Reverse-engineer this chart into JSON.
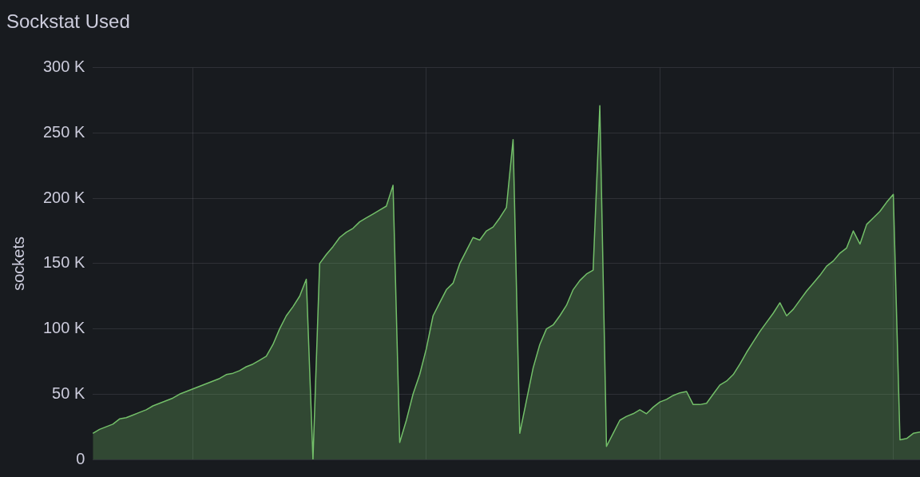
{
  "chart_data": {
    "type": "area",
    "title": "Sockstat Used",
    "ylabel": "sockets",
    "categories": [
      null,
      null,
      null,
      null,
      null,
      null,
      null,
      null,
      null,
      null,
      null,
      null,
      null,
      null,
      null,
      null,
      null,
      null,
      null,
      null,
      null,
      null,
      null,
      null,
      null,
      null,
      null,
      null,
      null,
      null,
      null,
      null,
      null,
      null,
      null,
      null,
      null,
      null,
      null,
      null,
      null,
      null,
      null,
      null,
      null,
      null,
      null,
      null,
      null,
      null,
      null,
      null,
      null,
      null,
      null,
      null,
      null,
      null,
      null,
      null,
      null,
      null,
      null,
      null,
      null,
      null,
      null,
      null,
      null,
      null,
      null,
      null,
      null,
      null,
      null,
      null,
      null,
      null,
      null,
      null,
      null,
      null,
      null,
      null,
      null,
      null,
      null,
      null,
      null,
      null,
      null,
      null,
      null,
      null,
      null,
      null,
      null,
      null,
      null,
      null,
      null,
      null,
      null,
      null,
      null,
      null,
      null,
      null,
      null,
      null,
      null,
      null,
      null,
      null,
      null,
      null,
      null,
      null,
      null,
      null,
      null,
      null,
      null,
      null,
      null
    ],
    "series": [
      {
        "color": "#73bf69",
        "values": [
          20000,
          23000,
          25000,
          27000,
          31000,
          32000,
          34000,
          36000,
          38000,
          41000,
          43000,
          45000,
          47000,
          50000,
          52000,
          54000,
          56000,
          58000,
          60000,
          62000,
          65000,
          66000,
          68000,
          71000,
          73000,
          76000,
          79000,
          88000,
          100000,
          110000,
          117000,
          125000,
          138000,
          0,
          150000,
          157000,
          163000,
          170000,
          174000,
          177000,
          182000,
          185000,
          188000,
          191000,
          194000,
          210000,
          13000,
          30000,
          50000,
          65000,
          85000,
          110000,
          120000,
          130000,
          135000,
          150000,
          160000,
          170000,
          168000,
          175000,
          178000,
          185000,
          193000,
          245000,
          20000,
          45000,
          70000,
          88000,
          100000,
          103000,
          110000,
          118000,
          130000,
          137000,
          142000,
          145000,
          271000,
          10000,
          20000,
          30000,
          33000,
          35000,
          38000,
          35000,
          40000,
          44000,
          46000,
          49000,
          51000,
          52000,
          42000,
          42000,
          43000,
          50000,
          57000,
          60000,
          65000,
          73000,
          82000,
          90000,
          98000,
          105000,
          112000,
          120000,
          110000,
          115000,
          122000,
          129000,
          135000,
          141000,
          148000,
          152000,
          158000,
          162000,
          175000,
          165000,
          180000,
          185000,
          190000,
          197000,
          203000,
          15000,
          16000,
          20000,
          21000
        ]
      }
    ],
    "ylim": [
      0,
      300000
    ],
    "yticks": [
      {
        "value": 0,
        "label": "0"
      },
      {
        "value": 50000,
        "label": "50 K"
      },
      {
        "value": 100000,
        "label": "100 K"
      },
      {
        "value": 150000,
        "label": "150 K"
      },
      {
        "value": 200000,
        "label": "200 K"
      },
      {
        "value": 250000,
        "label": "250 K"
      },
      {
        "value": 300000,
        "label": "300 K"
      }
    ],
    "tick_labels": "y",
    "grid": true,
    "legend": false,
    "marker": "none",
    "line_style": "solid"
  }
}
